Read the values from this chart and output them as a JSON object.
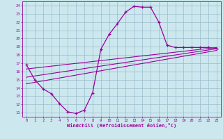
{
  "xlabel": "Windchill (Refroidissement éolien,°C)",
  "background_color": "#cce8ee",
  "line_color": "#990099",
  "grid_color": "#99bbcc",
  "xlim": [
    -0.5,
    23.5
  ],
  "ylim": [
    10.5,
    24.5
  ],
  "xticks": [
    0,
    1,
    2,
    3,
    4,
    5,
    6,
    7,
    8,
    9,
    10,
    11,
    12,
    13,
    14,
    15,
    16,
    17,
    18,
    19,
    20,
    21,
    22,
    23
  ],
  "yticks": [
    11,
    12,
    13,
    14,
    15,
    16,
    17,
    18,
    19,
    20,
    21,
    22,
    23,
    24
  ],
  "curve_x": [
    0,
    1,
    2,
    3,
    4,
    5,
    6,
    7,
    8,
    9,
    10,
    11,
    12,
    13,
    14,
    15,
    16,
    17,
    18,
    19,
    20,
    21,
    22,
    23
  ],
  "curve_y": [
    16.8,
    15.0,
    13.9,
    13.3,
    12.1,
    11.1,
    10.9,
    11.3,
    13.4,
    18.7,
    20.5,
    21.8,
    23.2,
    23.9,
    23.8,
    23.8,
    22.0,
    19.2,
    18.9,
    18.9,
    18.9,
    18.9,
    18.9,
    18.8
  ],
  "line1_y0": 14.5,
  "line1_y1": 18.55,
  "line2_y0": 15.3,
  "line2_y1": 18.75,
  "line3_y0": 16.3,
  "line3_y1": 18.9
}
